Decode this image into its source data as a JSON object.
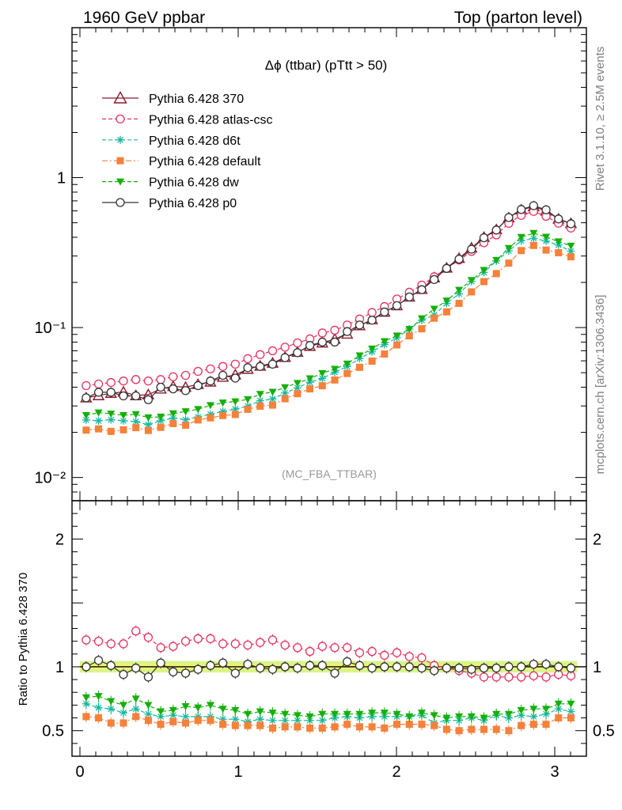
{
  "header": {
    "left": "1960 GeV ppbar",
    "right": "Top (parton level)"
  },
  "side": {
    "rivet": "Rivet 3.1.10, ≥ 2.5M events",
    "mcplots": "mcplots.cern.ch [arXiv:1306.3436]"
  },
  "chart_data": {
    "type": "line",
    "title": "Δϕ (ttbar) (pTtt > 50)",
    "watermark": "(MC_FBA_TTBAR)",
    "xlabel": "",
    "ylabel_main": "",
    "ylabel_ratio": "Ratio to Pythia 6.428 370",
    "xlim": [
      -0.05,
      3.2
    ],
    "ylim_main": [
      0.007,
      10
    ],
    "ylim_ratio": [
      0.3,
      2.3
    ],
    "x_ticks": [
      "0",
      "1",
      "2",
      "3"
    ],
    "y_ticks_main": [
      "10⁻²",
      "10⁻¹",
      "1"
    ],
    "y_ticks_ratio": [
      "0.5",
      "1",
      "2"
    ],
    "x": [
      0.0393,
      0.1178,
      0.1963,
      0.2749,
      0.3534,
      0.432,
      0.5105,
      0.589,
      0.6676,
      0.7461,
      0.8247,
      0.9032,
      0.9817,
      1.0603,
      1.1388,
      1.2174,
      1.2959,
      1.3744,
      1.453,
      1.5315,
      1.6101,
      1.6886,
      1.7671,
      1.8457,
      1.9242,
      2.0028,
      2.0813,
      2.1598,
      2.2384,
      2.3169,
      2.3955,
      2.474,
      2.5525,
      2.6311,
      2.7096,
      2.7882,
      2.8667,
      2.9452,
      3.0238,
      3.1023
    ],
    "series": [
      {
        "name": "Pythia 6.428 370",
        "color": "#8b1a2b",
        "marker": "triangle-open",
        "dash": "solid",
        "values": [
          0.034,
          0.0352,
          0.0365,
          0.0372,
          0.0352,
          0.0357,
          0.039,
          0.0405,
          0.04,
          0.0418,
          0.0434,
          0.0467,
          0.0484,
          0.0528,
          0.0554,
          0.058,
          0.0633,
          0.0686,
          0.0751,
          0.079,
          0.0838,
          0.0906,
          0.103,
          0.113,
          0.127,
          0.14,
          0.16,
          0.18,
          0.215,
          0.25,
          0.29,
          0.34,
          0.4,
          0.45,
          0.54,
          0.61,
          0.64,
          0.6,
          0.53,
          0.495
        ]
      },
      {
        "name": "Pythia 6.428 atlas-csc",
        "color": "#e8315f",
        "marker": "circle-open",
        "dash": "dashed",
        "values": [
          0.041,
          0.042,
          0.043,
          0.044,
          0.045,
          0.044,
          0.045,
          0.047,
          0.048,
          0.051,
          0.053,
          0.055,
          0.057,
          0.062,
          0.066,
          0.07,
          0.074,
          0.079,
          0.084,
          0.092,
          0.096,
          0.104,
          0.114,
          0.126,
          0.138,
          0.155,
          0.172,
          0.192,
          0.218,
          0.248,
          0.282,
          0.322,
          0.368,
          0.415,
          0.495,
          0.56,
          0.595,
          0.552,
          0.496,
          0.461
        ]
      },
      {
        "name": "Pythia 6.428 d6t",
        "color": "#19b9a0",
        "marker": "asterisk",
        "dash": "dashed",
        "values": [
          0.0242,
          0.0239,
          0.0243,
          0.0239,
          0.0236,
          0.0225,
          0.0239,
          0.0249,
          0.0243,
          0.0253,
          0.0264,
          0.0276,
          0.0286,
          0.0299,
          0.0325,
          0.0334,
          0.0366,
          0.0396,
          0.0432,
          0.0458,
          0.0504,
          0.055,
          0.0621,
          0.0689,
          0.0771,
          0.0854,
          0.0977,
          0.1119,
          0.1213,
          0.145,
          0.1679,
          0.2032,
          0.2333,
          0.2784,
          0.3249,
          0.3788,
          0.3934,
          0.3776,
          0.3552,
          0.3233
        ]
      },
      {
        "name": "Pythia 6.428 default",
        "color": "#f5813a",
        "marker": "square-filled",
        "dash": "dashdot",
        "values": [
          0.0207,
          0.0211,
          0.0203,
          0.0208,
          0.0215,
          0.0206,
          0.0216,
          0.0229,
          0.0223,
          0.0242,
          0.025,
          0.0259,
          0.0263,
          0.0285,
          0.0299,
          0.0304,
          0.0335,
          0.0362,
          0.039,
          0.0409,
          0.0447,
          0.0494,
          0.0543,
          0.0597,
          0.0666,
          0.0766,
          0.088,
          0.0981,
          0.1155,
          0.1273,
          0.145,
          0.173,
          0.2025,
          0.2291,
          0.269,
          0.3262,
          0.3529,
          0.3287,
          0.3155,
          0.2964
        ]
      },
      {
        "name": "Pythia 6.428 dw",
        "color": "#14b00a",
        "marker": "triangle-down-filled",
        "dash": "dashed",
        "values": [
          0.026,
          0.0271,
          0.0266,
          0.026,
          0.0264,
          0.0251,
          0.0254,
          0.0267,
          0.0276,
          0.0285,
          0.0303,
          0.0315,
          0.0321,
          0.0332,
          0.036,
          0.0372,
          0.0399,
          0.0426,
          0.0457,
          0.0496,
          0.0529,
          0.0573,
          0.065,
          0.0722,
          0.081,
          0.0883,
          0.0976,
          0.115,
          0.1331,
          0.151,
          0.178,
          0.2068,
          0.2414,
          0.2814,
          0.3383,
          0.401,
          0.4261,
          0.4023,
          0.3744,
          0.3504
        ]
      },
      {
        "name": "Pythia 6.428 p0",
        "color": "#333333",
        "marker": "circle-open",
        "dash": "solid",
        "values": [
          0.034,
          0.037,
          0.037,
          0.035,
          0.035,
          0.033,
          0.04,
          0.039,
          0.038,
          0.041,
          0.044,
          0.048,
          0.046,
          0.054,
          0.055,
          0.057,
          0.063,
          0.068,
          0.076,
          0.08,
          0.08,
          0.094,
          0.104,
          0.112,
          0.127,
          0.14,
          0.16,
          0.179,
          0.209,
          0.248,
          0.286,
          0.333,
          0.397,
          0.447,
          0.542,
          0.613,
          0.65,
          0.61,
          0.53,
          0.492
        ]
      }
    ],
    "ratio_series": [
      {
        "name": "Pythia 6.428 atlas-csc",
        "values": [
          1.21,
          1.2,
          1.18,
          1.18,
          1.28,
          1.23,
          1.15,
          1.16,
          1.2,
          1.22,
          1.22,
          1.18,
          1.18,
          1.17,
          1.19,
          1.21,
          1.17,
          1.15,
          1.12,
          1.16,
          1.15,
          1.15,
          1.11,
          1.12,
          1.09,
          1.11,
          1.08,
          1.07,
          1.01,
          0.99,
          0.97,
          0.95,
          0.92,
          0.92,
          0.92,
          0.92,
          0.93,
          0.92,
          0.94,
          0.93
        ]
      },
      {
        "name": "Pythia 6.428 d6t",
        "values": [
          0.71,
          0.68,
          0.67,
          0.64,
          0.67,
          0.63,
          0.61,
          0.62,
          0.61,
          0.61,
          0.61,
          0.59,
          0.59,
          0.57,
          0.59,
          0.58,
          0.58,
          0.58,
          0.58,
          0.58,
          0.6,
          0.61,
          0.6,
          0.61,
          0.61,
          0.61,
          0.61,
          0.62,
          0.56,
          0.58,
          0.58,
          0.6,
          0.58,
          0.62,
          0.6,
          0.62,
          0.61,
          0.63,
          0.67,
          0.65
        ]
      },
      {
        "name": "Pythia 6.428 default",
        "values": [
          0.61,
          0.6,
          0.56,
          0.56,
          0.61,
          0.58,
          0.55,
          0.57,
          0.56,
          0.58,
          0.58,
          0.55,
          0.54,
          0.54,
          0.54,
          0.52,
          0.53,
          0.53,
          0.52,
          0.52,
          0.53,
          0.55,
          0.53,
          0.53,
          0.52,
          0.55,
          0.55,
          0.55,
          0.54,
          0.51,
          0.5,
          0.51,
          0.51,
          0.51,
          0.5,
          0.54,
          0.55,
          0.55,
          0.6,
          0.6
        ]
      },
      {
        "name": "Pythia 6.428 dw",
        "values": [
          0.76,
          0.77,
          0.73,
          0.7,
          0.75,
          0.7,
          0.65,
          0.66,
          0.69,
          0.68,
          0.7,
          0.67,
          0.66,
          0.63,
          0.65,
          0.64,
          0.63,
          0.62,
          0.61,
          0.63,
          0.63,
          0.63,
          0.63,
          0.64,
          0.64,
          0.63,
          0.61,
          0.64,
          0.62,
          0.6,
          0.61,
          0.61,
          0.6,
          0.63,
          0.63,
          0.66,
          0.67,
          0.67,
          0.71,
          0.71
        ]
      },
      {
        "name": "Pythia 6.428 p0",
        "values": [
          1.0,
          1.05,
          1.01,
          0.94,
          0.99,
          0.92,
          1.03,
          0.96,
          0.95,
          0.98,
          1.01,
          1.03,
          0.95,
          1.02,
          0.99,
          0.98,
          1.0,
          0.99,
          1.01,
          1.01,
          0.95,
          1.04,
          1.01,
          0.99,
          1.0,
          1.0,
          1.0,
          0.99,
          0.97,
          0.99,
          0.99,
          0.98,
          0.99,
          0.99,
          1.0,
          1.0,
          1.02,
          1.02,
          1.0,
          0.99
        ]
      }
    ],
    "band": {
      "low": 0.955,
      "high": 1.045,
      "inner_low": 0.985,
      "inner_high": 1.015,
      "color_outer": "#d8f58a",
      "color_inner": "#fff36b"
    }
  }
}
